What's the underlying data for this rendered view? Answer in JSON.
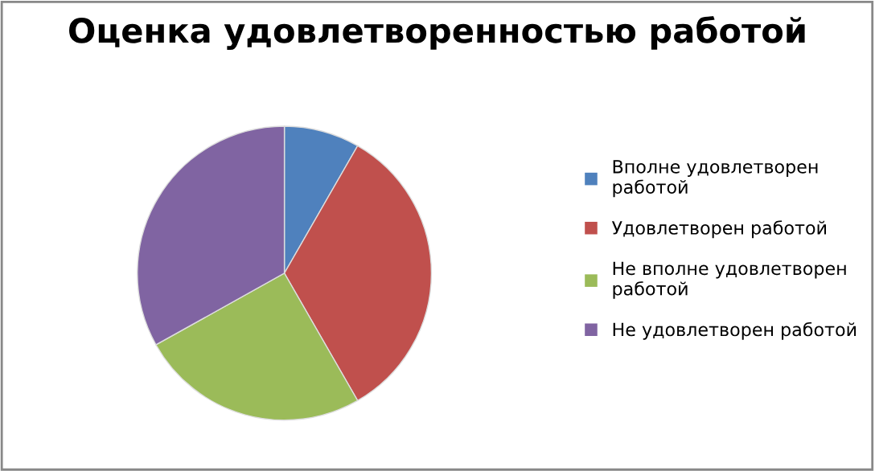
{
  "chart_data": {
    "type": "pie",
    "title": "Оценка удовлетворенностью работой",
    "categories": [
      "Вполне удовлетворен работой",
      "Удовлетворен работой",
      "Не вполне удовлетворен работой",
      "Не удовлетворен работой"
    ],
    "values": [
      8.3,
      33.4,
      25.2,
      33.1
    ],
    "colors": [
      "#4f81bd",
      "#c0504d",
      "#9bbb59",
      "#8064a2"
    ],
    "legend": "right"
  }
}
